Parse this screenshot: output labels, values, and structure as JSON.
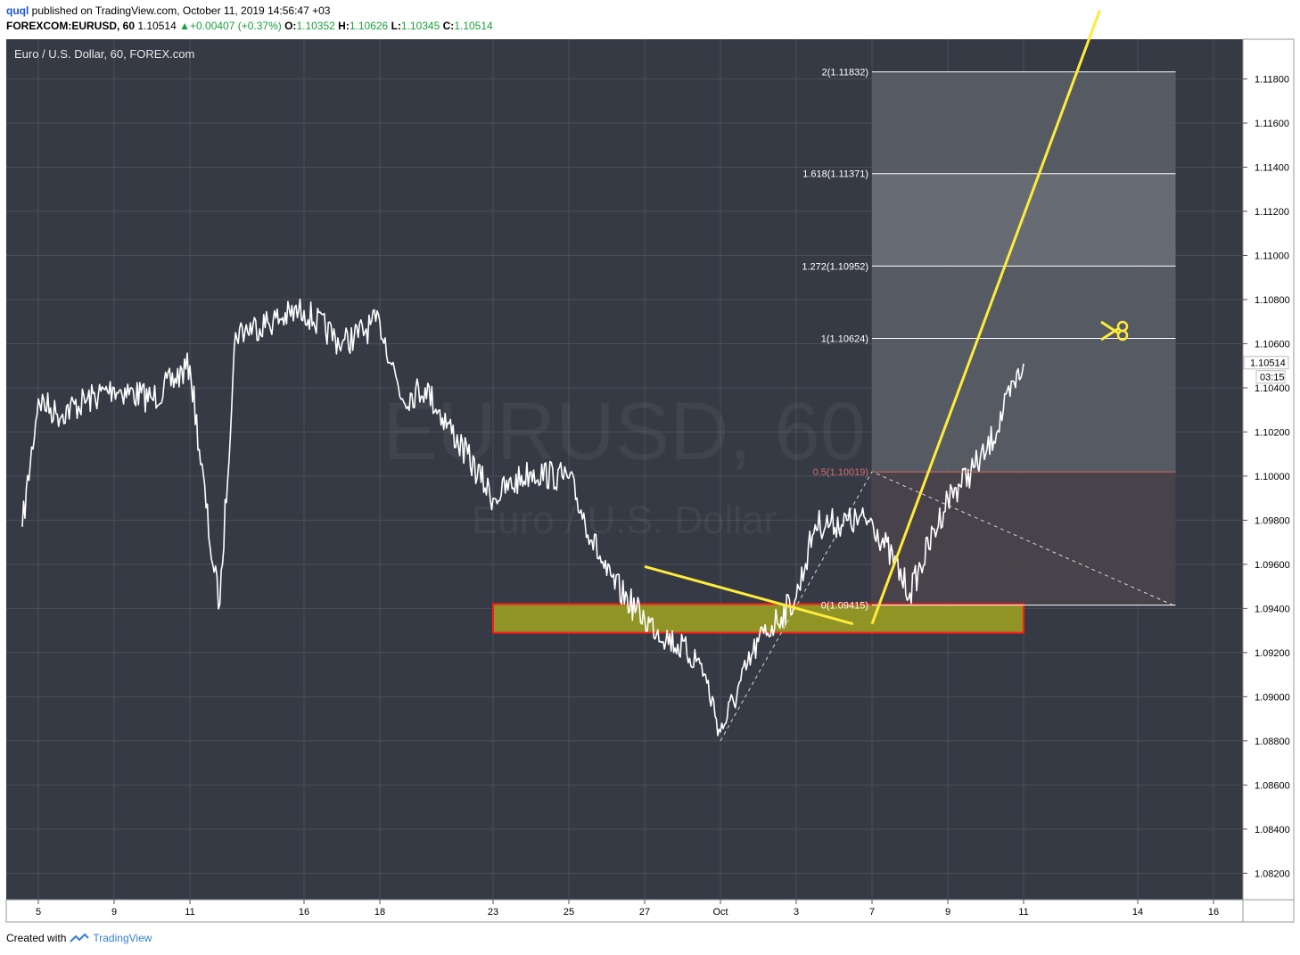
{
  "header": {
    "user": "quql",
    "published_text": "published on TradingView.com, October 11, 2019 14:56:47 +03",
    "symbol": "FOREXCOM:EURUSD, 60",
    "last": "1.10514",
    "change": "+0.00407 (+0.37%)",
    "o_label": "O:",
    "o_value": "1.10352",
    "h_label": "H:",
    "h_value": "1.10626",
    "l_label": "L:",
    "l_value": "1.10345",
    "c_label": "C:",
    "c_value": "1.10514"
  },
  "chart_title": "Euro / U.S. Dollar, 60, FOREX.com",
  "watermark": {
    "symbol": "EURUSD, 60",
    "name": "Euro / U.S. Dollar"
  },
  "colors": {
    "background": "#363a45",
    "grid": "#4b4f5a",
    "price": "#ffffff",
    "trendline": "#ffeb3b",
    "zone_fill": "#8f9424",
    "zone_border": "#ff1a1a",
    "fib_band": "#5c6069",
    "fib_upper_band": "#6a6e76",
    "fib_lower_band": "#4a434b",
    "fib_line": "#ffffff",
    "fib_mid_line": "#d86a6a",
    "ratio_line": "#d8d8d8"
  },
  "footer": {
    "created_with": "Created with",
    "brand": "TradingView"
  },
  "icon": "scissors-icon",
  "chart_data": {
    "type": "line",
    "timeframe": "60",
    "ylim": [
      1.0808,
      1.1198
    ],
    "x_ticks": [
      "5",
      "9",
      "11",
      "16",
      "18",
      "23",
      "25",
      "27",
      "Oct",
      "3",
      "7",
      "9",
      "11",
      "14",
      "16"
    ],
    "y_ticks": [
      "1.11800",
      "1.11600",
      "1.11400",
      "1.11200",
      "1.11000",
      "1.10800",
      "1.10600",
      "1.10400",
      "1.10200",
      "1.10000",
      "1.09800",
      "1.09600",
      "1.09400",
      "1.09200",
      "1.09000",
      "1.08800",
      "1.08600",
      "1.08400",
      "1.08200"
    ],
    "last_price_label": "1.10514",
    "countdown_label": "03:15",
    "series": [
      {
        "x": [
          "2019-09-04",
          "2019-09-05",
          "2019-09-06",
          "2019-09-09",
          "2019-09-10",
          "2019-09-11",
          "2019-09-12",
          "2019-09-12",
          "2019-09-13",
          "2019-09-16",
          "2019-09-17",
          "2019-09-18",
          "2019-09-19",
          "2019-09-20",
          "2019-09-23",
          "2019-09-24",
          "2019-09-25",
          "2019-09-26",
          "2019-09-27",
          "2019-09-30",
          "2019-10-01",
          "2019-10-02",
          "2019-10-03",
          "2019-10-04",
          "2019-10-07",
          "2019-10-08",
          "2019-10-09",
          "2019-10-10",
          "2019-10-11"
        ],
        "values": [
          1.0977,
          1.1035,
          1.1028,
          1.104,
          1.1035,
          1.105,
          1.096,
          1.0942,
          1.1065,
          1.1075,
          1.106,
          1.107,
          1.1035,
          1.104,
          1.099,
          1.1002,
          1.0999,
          1.0955,
          1.0935,
          1.0915,
          1.0884,
          1.0925,
          1.0945,
          1.0978,
          1.098,
          1.0947,
          1.099,
          1.101,
          1.1051
        ]
      }
    ],
    "annotations": {
      "fib_levels": [
        {
          "label": "2(1.11832)",
          "value": 1.11832
        },
        {
          "label": "1.618(1.11371)",
          "value": 1.11371
        },
        {
          "label": "1.272(1.10952)",
          "value": 1.10952
        },
        {
          "label": "1(1.10624)",
          "value": 1.10624
        },
        {
          "label": "0.5(1.10019)",
          "value": 1.10019
        },
        {
          "label": "0(1.09415)",
          "value": 1.09415
        }
      ],
      "support_zone": {
        "from_date": "2019-09-23",
        "to_date": "2019-10-11",
        "low": 1.0929,
        "high": 1.0942
      },
      "trendlines": [
        {
          "from": [
            "2019-09-27",
            1.0959
          ],
          "to": [
            "2019-10-06",
            1.0933
          ]
        },
        {
          "from": [
            "2019-10-07",
            1.0933
          ],
          "to": [
            "2019-10-13",
            1.1211
          ]
        }
      ],
      "dashed_path": [
        [
          "2019-10-01",
          1.088
        ],
        [
          "2019-10-07",
          1.1002
        ],
        [
          "2019-10-15",
          1.0941
        ]
      ]
    }
  }
}
